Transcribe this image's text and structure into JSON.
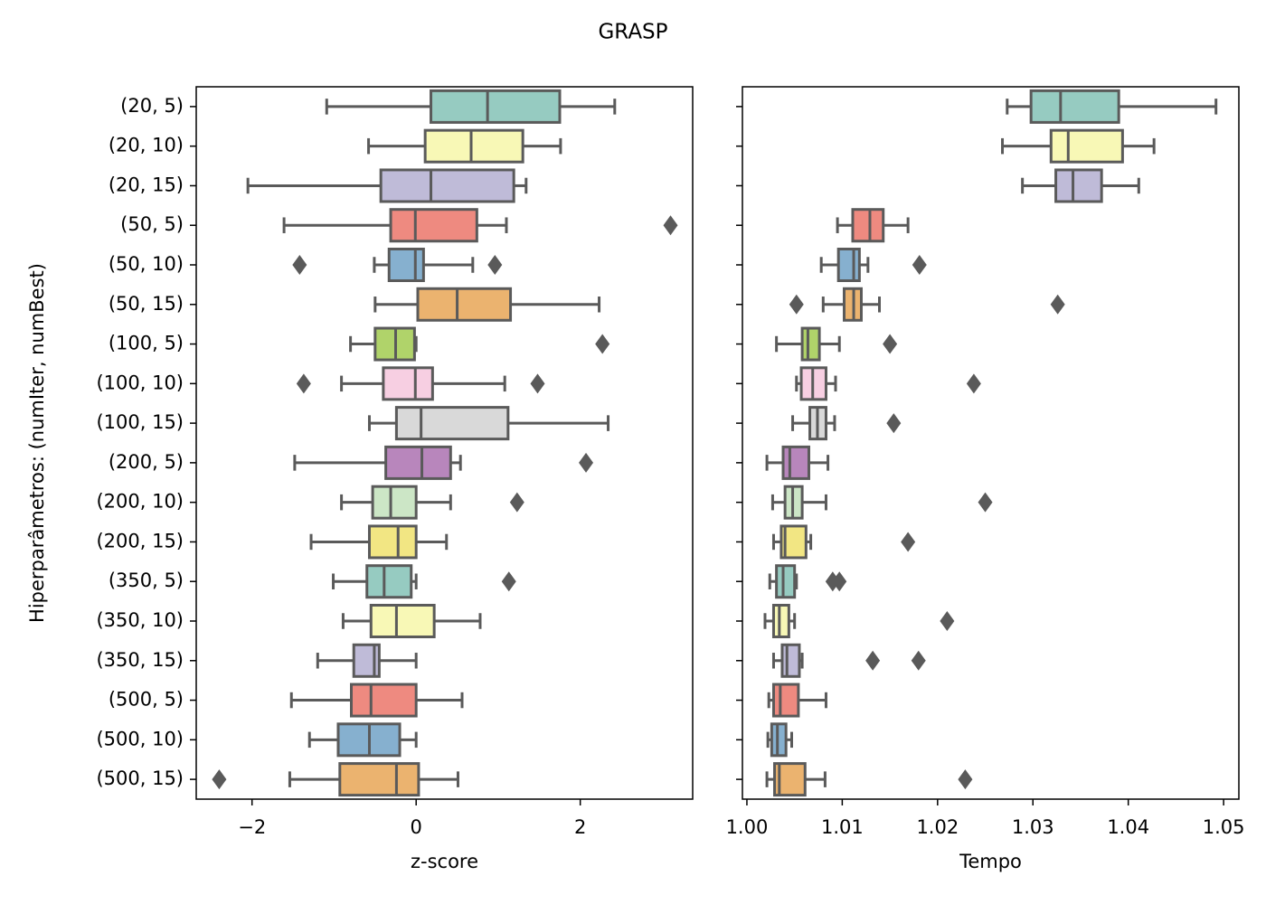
{
  "title": "GRASP",
  "chart_data": [
    {
      "type": "boxplot",
      "xlabel": "z-score",
      "ylabel": "Hiperparâmetros: (numIter, numBest)",
      "categories": [
        "(20, 5)",
        "(20, 10)",
        "(20, 15)",
        "(50, 5)",
        "(50, 10)",
        "(50, 15)",
        "(100, 5)",
        "(100, 10)",
        "(100, 15)",
        "(200, 5)",
        "(200, 10)",
        "(200, 15)",
        "(350, 5)",
        "(350, 10)",
        "(350, 15)",
        "(500, 5)",
        "(500, 10)",
        "(500, 15)"
      ],
      "colors": [
        "#96cbc1",
        "#f8f8b6",
        "#bfbbd8",
        "#ee8a80",
        "#86b0cf",
        "#ebb36f",
        "#b0d36a",
        "#f7cfe2",
        "#d9d9d9",
        "#b886bc",
        "#cce6c6",
        "#f2e683",
        "#96cbc1",
        "#f8f8b6",
        "#bfbbd8",
        "#ee8a80",
        "#86b0cf",
        "#ebb36f"
      ],
      "xlim": [
        -2.68,
        3.37
      ],
      "xticks": [
        {
          "value": -2,
          "label": "−2"
        },
        0,
        2
      ],
      "boxes": [
        {
          "min": -1.09,
          "q1": 0.18,
          "median": 0.87,
          "q3": 1.75,
          "max": 2.42,
          "outliers": []
        },
        {
          "min": -0.58,
          "q1": 0.11,
          "median": 0.67,
          "q3": 1.3,
          "max": 1.76,
          "outliers": []
        },
        {
          "min": -2.05,
          "q1": -0.43,
          "median": 0.18,
          "q3": 1.19,
          "max": 1.34,
          "outliers": []
        },
        {
          "min": -1.61,
          "q1": -0.31,
          "median": -0.01,
          "q3": 0.74,
          "max": 1.1,
          "outliers": [
            3.1
          ]
        },
        {
          "min": -0.51,
          "q1": -0.33,
          "median": -0.01,
          "q3": 0.09,
          "max": 0.69,
          "outliers": [
            -1.42,
            0.96
          ]
        },
        {
          "min": -0.5,
          "q1": 0.02,
          "median": 0.5,
          "q3": 1.15,
          "max": 2.23,
          "outliers": []
        },
        {
          "min": -0.8,
          "q1": -0.5,
          "median": -0.25,
          "q3": -0.02,
          "max": 0.0,
          "outliers": [
            2.27
          ]
        },
        {
          "min": -0.91,
          "q1": -0.4,
          "median": -0.01,
          "q3": 0.2,
          "max": 1.08,
          "outliers": [
            -1.37,
            1.48
          ]
        },
        {
          "min": -0.57,
          "q1": -0.24,
          "median": 0.06,
          "q3": 1.12,
          "max": 2.34,
          "outliers": []
        },
        {
          "min": -1.48,
          "q1": -0.37,
          "median": 0.07,
          "q3": 0.42,
          "max": 0.54,
          "outliers": [
            2.07
          ]
        },
        {
          "min": -0.91,
          "q1": -0.53,
          "median": -0.31,
          "q3": 0.0,
          "max": 0.42,
          "outliers": [
            1.23
          ]
        },
        {
          "min": -1.28,
          "q1": -0.57,
          "median": -0.22,
          "q3": 0.0,
          "max": 0.37,
          "outliers": []
        },
        {
          "min": -1.01,
          "q1": -0.6,
          "median": -0.39,
          "q3": -0.06,
          "max": 0.0,
          "outliers": [
            1.13
          ]
        },
        {
          "min": -0.89,
          "q1": -0.55,
          "median": -0.24,
          "q3": 0.22,
          "max": 0.78,
          "outliers": []
        },
        {
          "min": -1.2,
          "q1": -0.76,
          "median": -0.51,
          "q3": -0.45,
          "max": 0.0,
          "outliers": []
        },
        {
          "min": -1.52,
          "q1": -0.79,
          "median": -0.55,
          "q3": 0.0,
          "max": 0.56,
          "outliers": []
        },
        {
          "min": -1.3,
          "q1": -0.95,
          "median": -0.57,
          "q3": -0.2,
          "max": 0.0,
          "outliers": []
        },
        {
          "min": -1.54,
          "q1": -0.93,
          "median": -0.24,
          "q3": 0.03,
          "max": 0.51,
          "outliers": [
            -2.4
          ]
        }
      ]
    },
    {
      "type": "boxplot",
      "xlabel": "Tempo",
      "colors": [
        "#96cbc1",
        "#f8f8b6",
        "#bfbbd8",
        "#ee8a80",
        "#86b0cf",
        "#ebb36f",
        "#b0d36a",
        "#f7cfe2",
        "#d9d9d9",
        "#b886bc",
        "#cce6c6",
        "#f2e683",
        "#96cbc1",
        "#f8f8b6",
        "#bfbbd8",
        "#ee8a80",
        "#86b0cf",
        "#ebb36f"
      ],
      "xlim": [
        0.99953,
        1.0516
      ],
      "xticks": [
        {
          "value": 1,
          "label": "1.00"
        },
        1.01,
        1.02,
        1.03,
        1.04,
        1.05
      ],
      "boxes": [
        {
          "min": 1.0273,
          "q1": 1.0298,
          "median": 1.0329,
          "q3": 1.039,
          "max": 1.0492,
          "outliers": []
        },
        {
          "min": 1.0268,
          "q1": 1.0319,
          "median": 1.0337,
          "q3": 1.0394,
          "max": 1.0427,
          "outliers": []
        },
        {
          "min": 1.0289,
          "q1": 1.0324,
          "median": 1.0342,
          "q3": 1.0372,
          "max": 1.0411,
          "outliers": []
        },
        {
          "min": 1.0095,
          "q1": 1.0111,
          "median": 1.0129,
          "q3": 1.0143,
          "max": 1.0169,
          "outliers": []
        },
        {
          "min": 1.0078,
          "q1": 1.0096,
          "median": 1.0112,
          "q3": 1.0118,
          "max": 1.0127,
          "outliers": [
            1.0181
          ]
        },
        {
          "min": 1.008,
          "q1": 1.0102,
          "median": 1.0112,
          "q3": 1.012,
          "max": 1.0139,
          "outliers": [
            1.0052,
            1.0326
          ]
        },
        {
          "min": 1.0031,
          "q1": 1.0058,
          "median": 1.0064,
          "q3": 1.0076,
          "max": 1.0097,
          "outliers": [
            1.015
          ]
        },
        {
          "min": 1.0052,
          "q1": 1.0057,
          "median": 1.0069,
          "q3": 1.0083,
          "max": 1.0093,
          "outliers": [
            1.0238
          ]
        },
        {
          "min": 1.0048,
          "q1": 1.0066,
          "median": 1.0074,
          "q3": 1.0083,
          "max": 1.0092,
          "outliers": [
            1.0154
          ]
        },
        {
          "min": 1.0021,
          "q1": 1.0038,
          "median": 1.0045,
          "q3": 1.0065,
          "max": 1.0085,
          "outliers": []
        },
        {
          "min": 1.0027,
          "q1": 1.004,
          "median": 1.0048,
          "q3": 1.0058,
          "max": 1.0083,
          "outliers": [
            1.025
          ]
        },
        {
          "min": 1.0028,
          "q1": 1.0036,
          "median": 1.004,
          "q3": 1.0062,
          "max": 1.0067,
          "outliers": [
            1.0169
          ]
        },
        {
          "min": 1.0024,
          "q1": 1.0031,
          "median": 1.0038,
          "q3": 1.005,
          "max": 1.0052,
          "outliers": [
            1.009,
            1.0097
          ]
        },
        {
          "min": 1.0019,
          "q1": 1.0028,
          "median": 1.0034,
          "q3": 1.0044,
          "max": 1.005,
          "outliers": [
            1.021
          ]
        },
        {
          "min": 1.0028,
          "q1": 1.0037,
          "median": 1.0042,
          "q3": 1.0055,
          "max": 1.0058,
          "outliers": [
            1.0132,
            1.018
          ]
        },
        {
          "min": 1.0023,
          "q1": 1.0028,
          "median": 1.0035,
          "q3": 1.0054,
          "max": 1.0083,
          "outliers": []
        },
        {
          "min": 1.0022,
          "q1": 1.0026,
          "median": 1.0032,
          "q3": 1.0041,
          "max": 1.0047,
          "outliers": []
        },
        {
          "min": 1.0021,
          "q1": 1.0029,
          "median": 1.0034,
          "q3": 1.0061,
          "max": 1.0082,
          "outliers": [
            1.0229
          ]
        }
      ]
    }
  ]
}
